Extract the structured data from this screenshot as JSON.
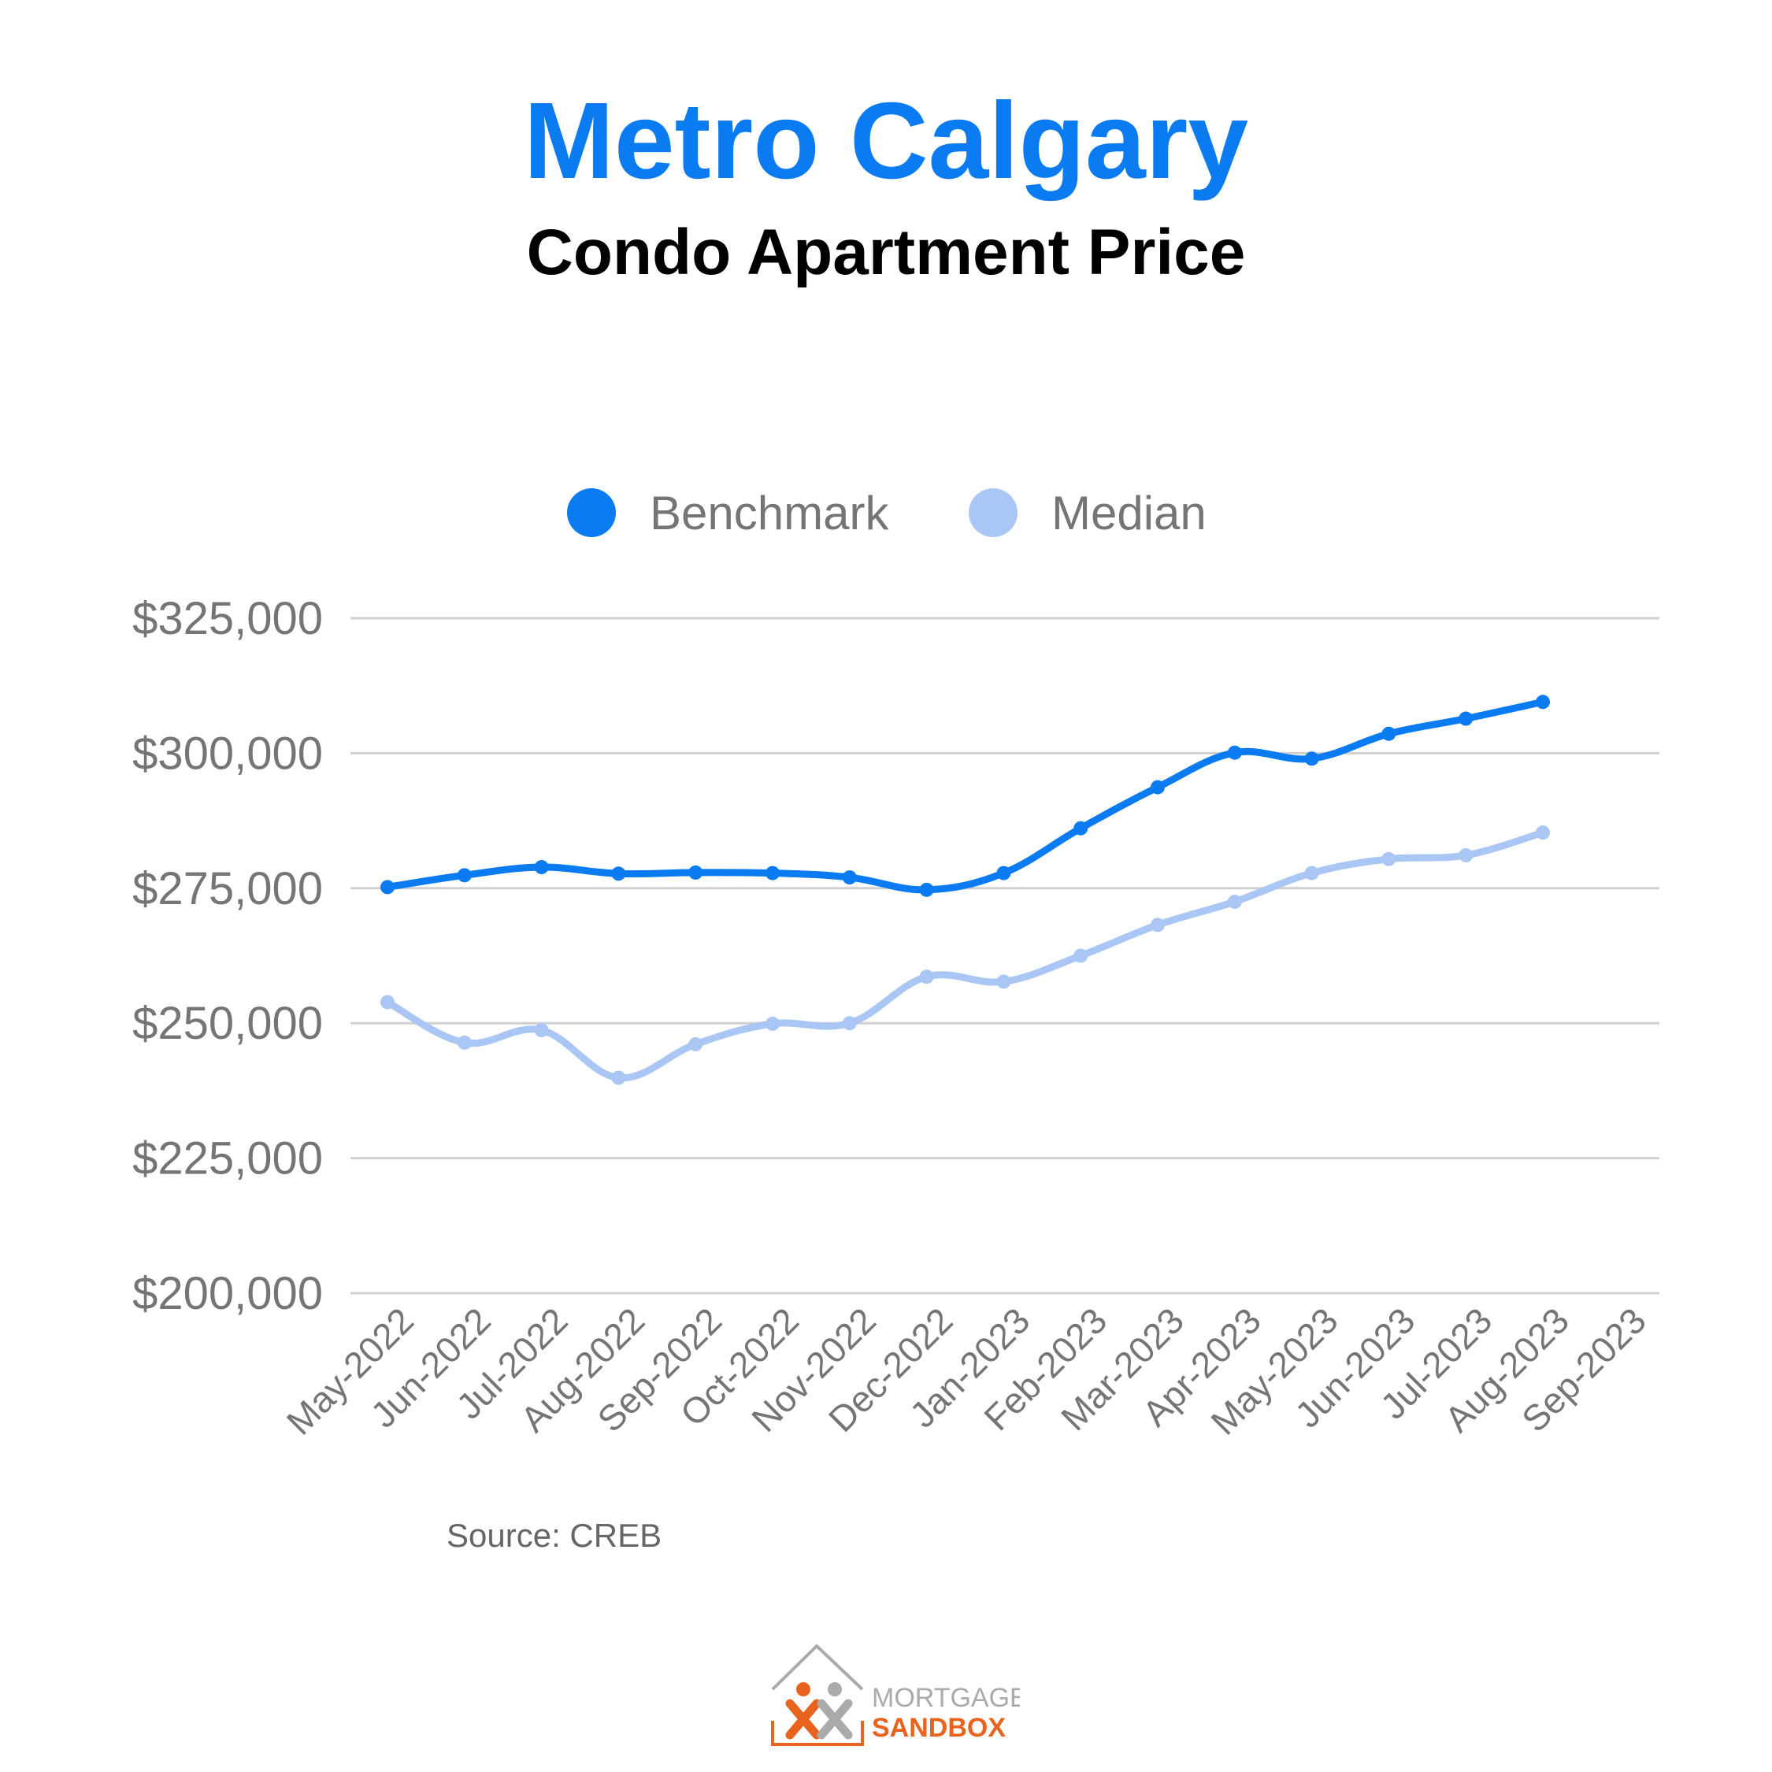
{
  "header": {
    "title": "Metro Calgary",
    "subtitle": "Condo Apartment Price"
  },
  "source": "Source: CREB",
  "logo": {
    "line1": "MORTGAGE",
    "line2": "SANDBOX"
  },
  "colors": {
    "benchmark": "#0a7bf0",
    "median": "#a9c6f5",
    "grid": "#d0d0d0",
    "title": "#0a7bf0",
    "logo_orange": "#e8641e",
    "logo_gray": "#aaaaaa"
  },
  "chart_data": {
    "type": "line",
    "title": "",
    "xlabel": "",
    "ylabel": "",
    "categories": [
      "May-2022",
      "Jun-2022",
      "Jul-2022",
      "Aug-2022",
      "Sep-2022",
      "Oct-2022",
      "Nov-2022",
      "Dec-2022",
      "Jan-2023",
      "Feb-2023",
      "Mar-2023",
      "Apr-2023",
      "May-2023",
      "Jun-2023",
      "Jul-2023",
      "Aug-2023",
      "Sep-2023"
    ],
    "ylim": [
      200000,
      325000
    ],
    "yticks": [
      200000,
      225000,
      250000,
      275000,
      300000,
      325000
    ],
    "ytick_labels": [
      "$200,000",
      "$225,000",
      "$250,000",
      "$275,000",
      "$300,000",
      "$325,000"
    ],
    "grid": true,
    "legend": "top",
    "series": [
      {
        "name": "Benchmark",
        "values": [
          275200,
          277400,
          278900,
          277700,
          277900,
          277800,
          277000,
          274700,
          277800,
          286100,
          293700,
          300100,
          299000,
          303600,
          306400,
          309500,
          null
        ]
      },
      {
        "name": "Median",
        "values": [
          253900,
          246400,
          248700,
          239900,
          246100,
          249900,
          250000,
          258600,
          257700,
          262500,
          268200,
          272500,
          277800,
          280400,
          281100,
          285300,
          null
        ]
      }
    ]
  }
}
